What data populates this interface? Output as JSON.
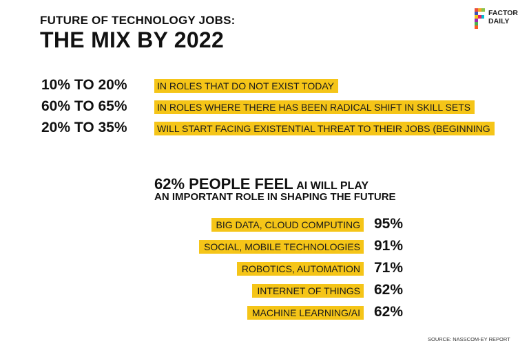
{
  "colors": {
    "highlight": "#f5c518",
    "text": "#111111"
  },
  "header": {
    "title_line1": "FUTURE OF TECHNOLOGY JOBS:",
    "title_line2": "THE MIX BY 2022"
  },
  "logo": {
    "line1": "FACTOR",
    "line2": "DAILY",
    "icon": "factordaily-f-logo"
  },
  "mix": [
    {
      "pct": "10% TO 20%",
      "desc": "IN ROLES THAT DO NOT EXIST TODAY"
    },
    {
      "pct": "60% TO 65%",
      "desc": "IN ROLES WHERE THERE HAS BEEN RADICAL SHIFT IN SKILL SETS"
    },
    {
      "pct": "20% TO 35%",
      "desc": "WILL START FACING EXISTENTIAL THREAT TO THEIR JOBS (BEGINNING"
    }
  ],
  "ai": {
    "headline_big": "62% PEOPLE FEEL",
    "headline_small": "AI WILL PLAY",
    "headline_line2": "AN IMPORTANT ROLE IN SHAPING THE FUTURE",
    "items": [
      {
        "label": "BIG DATA, CLOUD COMPUTING",
        "pct": "95%"
      },
      {
        "label": "SOCIAL, MOBILE TECHNOLOGIES",
        "pct": "91%"
      },
      {
        "label": "ROBOTICS, AUTOMATION",
        "pct": "71%"
      },
      {
        "label": "INTERNET OF THINGS",
        "pct": "62%"
      },
      {
        "label": "MACHINE LEARNING/AI",
        "pct": "62%"
      }
    ]
  },
  "source": "SOURCE: NASSCOM-EY REPORT"
}
